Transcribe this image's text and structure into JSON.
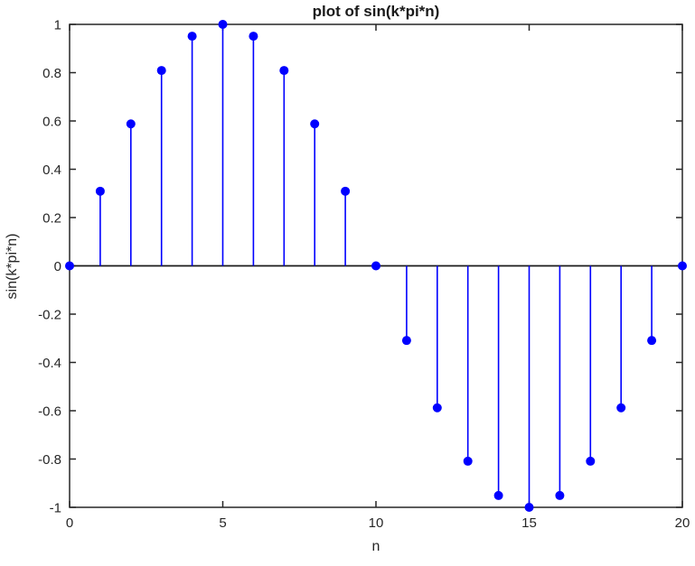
{
  "chart_data": {
    "type": "stem",
    "title": "plot of sin(k*pi*n)",
    "xlabel": "n",
    "ylabel": "sin(k*pi*n)",
    "x": [
      0,
      1,
      2,
      3,
      4,
      5,
      6,
      7,
      8,
      9,
      10,
      11,
      12,
      13,
      14,
      15,
      16,
      17,
      18,
      19,
      20
    ],
    "values": [
      0,
      0.309,
      0.5878,
      0.809,
      0.9511,
      1,
      0.9511,
      0.809,
      0.5878,
      0.309,
      0,
      -0.309,
      -0.5878,
      -0.809,
      -0.9511,
      -1,
      -0.9511,
      -0.809,
      -0.5878,
      -0.309,
      0
    ],
    "xlim": [
      0,
      20
    ],
    "ylim": [
      -1,
      1
    ],
    "xticks": [
      0,
      5,
      10,
      15,
      20
    ],
    "xtick_labels": [
      "0",
      "5",
      "10",
      "15",
      "20"
    ],
    "yticks": [
      -1,
      -0.8,
      -0.6,
      -0.4,
      -0.2,
      0,
      0.2,
      0.4,
      0.6,
      0.8,
      1
    ],
    "ytick_labels": [
      "-1",
      "-0.8",
      "-0.6",
      "-0.4",
      "-0.2",
      "0",
      "0.2",
      "0.4",
      "0.6",
      "0.8",
      "1"
    ],
    "baseline": 0,
    "grid": false,
    "legend": null,
    "marker": "filled-circle",
    "colors": {
      "stem": "#0000ff",
      "marker": "#0000ff",
      "baseline": "#1a1a1a",
      "axis": "#262626",
      "text": "#262626",
      "background": "#ffffff"
    }
  }
}
